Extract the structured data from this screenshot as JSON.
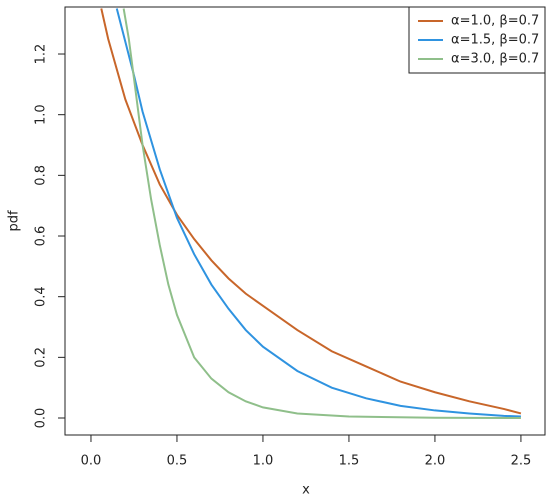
{
  "chart_data": {
    "type": "line",
    "xlabel": "x",
    "ylabel": "pdf",
    "xlim": [
      -0.151,
      2.64
    ],
    "ylim": [
      -0.056,
      1.355
    ],
    "xticks": [
      {
        "value": 0,
        "label": "0.0"
      },
      {
        "value": 0.5,
        "label": "0.5"
      },
      {
        "value": 1,
        "label": "1.0"
      },
      {
        "value": 1.5,
        "label": "1.5"
      },
      {
        "value": 2,
        "label": "2.0"
      },
      {
        "value": 2.5,
        "label": "2.5"
      }
    ],
    "yticks": [
      {
        "value": 0,
        "label": "0.0"
      },
      {
        "value": 0.2,
        "label": "0.2"
      },
      {
        "value": 0.4,
        "label": "0.4"
      },
      {
        "value": 0.6,
        "label": "0.6"
      },
      {
        "value": 0.8,
        "label": "0.8"
      },
      {
        "value": 1,
        "label": "1.0"
      },
      {
        "value": 1.2,
        "label": "1.2"
      }
    ],
    "legend": "top-right",
    "series": [
      {
        "name": "α=1.0, β=0.7",
        "color": "#c8662a",
        "x": [
          0.06,
          0.1,
          0.2,
          0.3,
          0.4,
          0.5,
          0.6,
          0.7,
          0.8,
          0.9,
          1.0,
          1.2,
          1.4,
          1.6,
          1.8,
          2.0,
          2.2,
          2.4,
          2.5
        ],
        "values": [
          1.35,
          1.25,
          1.05,
          0.9,
          0.77,
          0.67,
          0.59,
          0.52,
          0.46,
          0.41,
          0.37,
          0.29,
          0.22,
          0.17,
          0.12,
          0.085,
          0.055,
          0.03,
          0.015
        ]
      },
      {
        "name": "α=1.5, β=0.7",
        "color": "#2f93e0",
        "x": [
          0.15,
          0.2,
          0.25,
          0.3,
          0.4,
          0.5,
          0.6,
          0.7,
          0.8,
          0.9,
          1.0,
          1.2,
          1.4,
          1.6,
          1.8,
          2.0,
          2.2,
          2.4,
          2.5
        ],
        "values": [
          1.35,
          1.24,
          1.13,
          1.01,
          0.82,
          0.66,
          0.54,
          0.44,
          0.36,
          0.29,
          0.235,
          0.155,
          0.1,
          0.065,
          0.04,
          0.025,
          0.015,
          0.007,
          0.005
        ]
      },
      {
        "name": "α=3.0, β=0.7",
        "color": "#8fbf8a",
        "x": [
          0.19,
          0.22,
          0.25,
          0.3,
          0.35,
          0.4,
          0.45,
          0.5,
          0.6,
          0.7,
          0.8,
          0.9,
          1.0,
          1.2,
          1.5,
          2.0,
          2.5
        ],
        "values": [
          1.35,
          1.25,
          1.12,
          0.9,
          0.72,
          0.57,
          0.44,
          0.34,
          0.2,
          0.13,
          0.085,
          0.055,
          0.035,
          0.015,
          0.005,
          0.001,
          0.0
        ]
      }
    ]
  }
}
